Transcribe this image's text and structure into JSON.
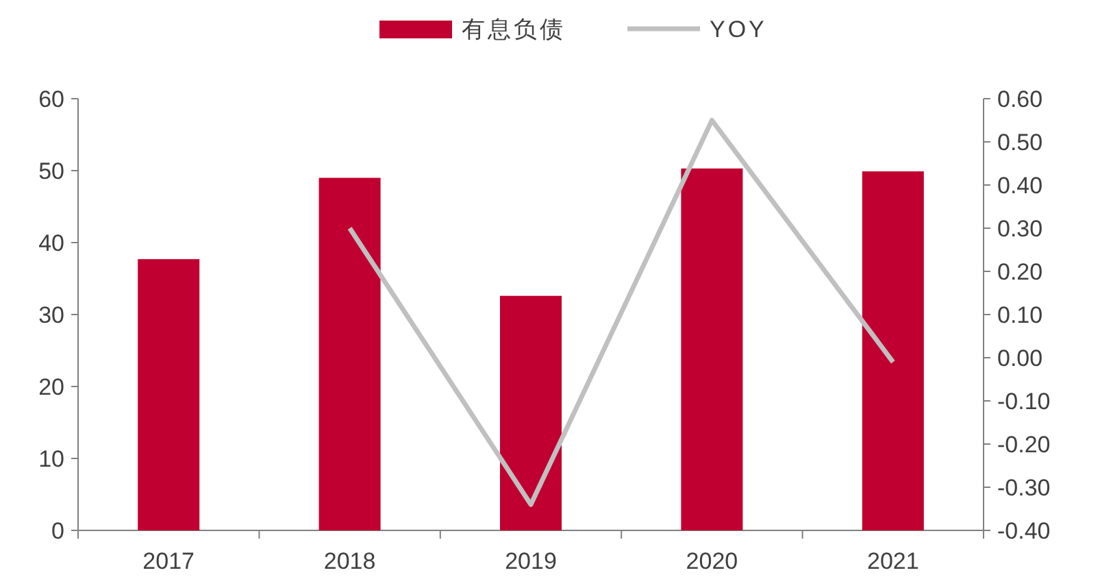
{
  "chart_data": {
    "type": "bar",
    "categories": [
      "2017",
      "2018",
      "2019",
      "2020",
      "2021"
    ],
    "series": [
      {
        "name": "有息负债",
        "color": "#c00030",
        "values": [
          37.7,
          49.0,
          32.6,
          50.3,
          49.9
        ]
      },
      {
        "name": "YOY",
        "type": "line",
        "axis": "y2",
        "color": "#c0c0c0",
        "values": [
          null,
          0.3,
          -0.34,
          0.55,
          -0.01
        ]
      }
    ],
    "ylim": [
      0,
      60
    ],
    "yticks": [
      0,
      10,
      20,
      30,
      40,
      50,
      60
    ],
    "y2lim": [
      -0.4,
      0.6
    ],
    "y2ticks": [
      {
        "value": -0.4,
        "label": "-0.40"
      },
      {
        "value": -0.3,
        "label": "-0.30"
      },
      {
        "value": -0.2,
        "label": "-0.20"
      },
      {
        "value": -0.1,
        "label": "-0.10"
      },
      {
        "value": 0,
        "label": "0.00"
      },
      {
        "value": 0.1,
        "label": "0.10"
      },
      {
        "value": 0.2,
        "label": "0.20"
      },
      {
        "value": 0.3,
        "label": "0.30"
      },
      {
        "value": 0.4,
        "label": "0.40"
      },
      {
        "value": 0.5,
        "label": "0.50"
      },
      {
        "value": 0.6,
        "label": "0.60"
      }
    ],
    "legend": "top",
    "grid": false,
    "marker": "none",
    "line_style": "solid"
  }
}
